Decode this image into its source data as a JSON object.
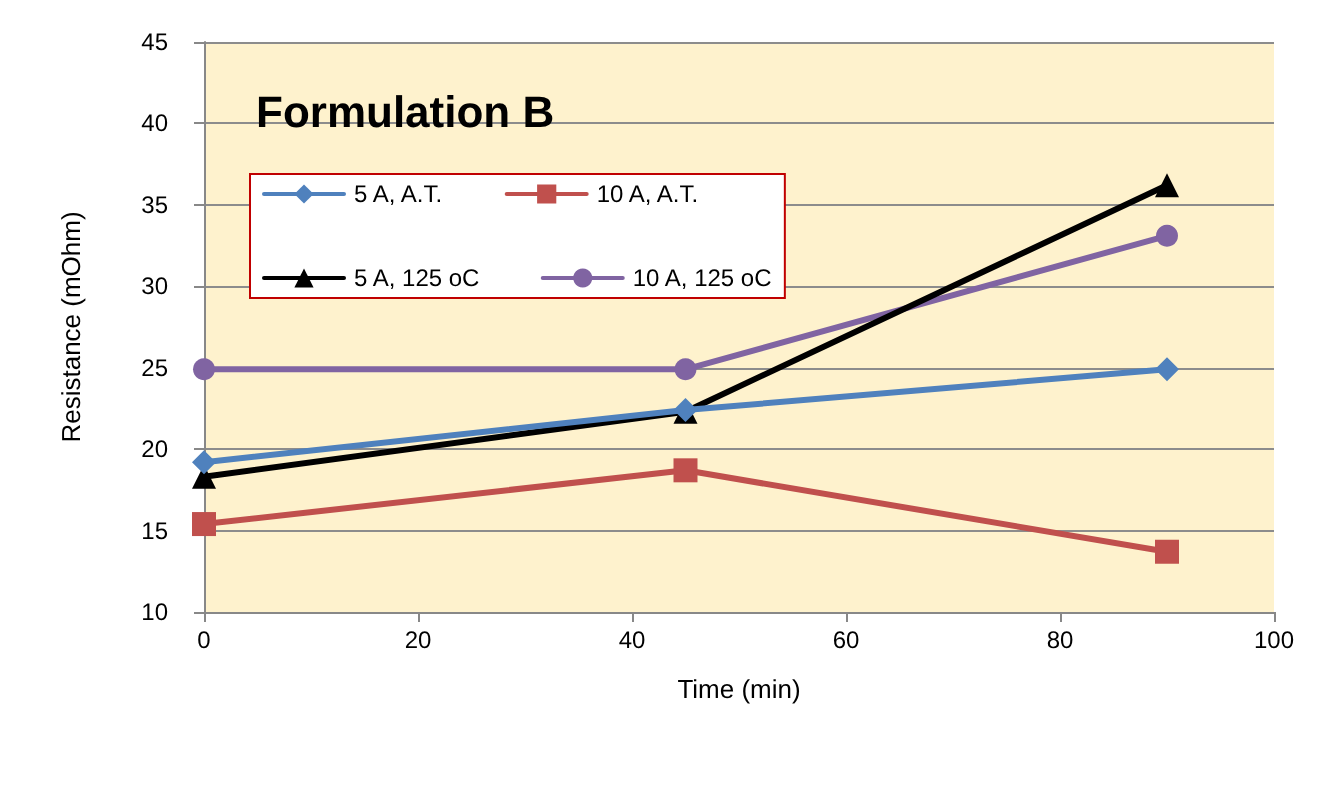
{
  "chart_data": {
    "type": "line",
    "title": "Formulation B",
    "xlabel": "Time (min)",
    "ylabel": "Resistance (mOhm)",
    "x": [
      0,
      45,
      90
    ],
    "series": [
      {
        "name": "5 A, A.T.",
        "color": "#4f81bd",
        "marker": "diamond",
        "values": [
          19.2,
          22.4,
          24.9
        ]
      },
      {
        "name": "10 A, A.T.",
        "color": "#c0504d",
        "marker": "square",
        "values": [
          15.4,
          18.7,
          13.7
        ]
      },
      {
        "name": "5 A, 125 oC",
        "color": "#000000",
        "marker": "triangle",
        "values": [
          18.3,
          22.3,
          36.2
        ]
      },
      {
        "name": "10 A, 125 oC",
        "color": "#8064a2",
        "marker": "circle",
        "values": [
          24.9,
          24.9,
          33.1
        ]
      }
    ],
    "xlim": [
      0,
      100
    ],
    "xticks": [
      0,
      20,
      40,
      60,
      80,
      100
    ],
    "ylim": [
      10,
      45
    ],
    "yticks": [
      10,
      15,
      20,
      25,
      30,
      35,
      40,
      45
    ],
    "grid": "y",
    "legend": "top left",
    "line_style": "solid"
  }
}
